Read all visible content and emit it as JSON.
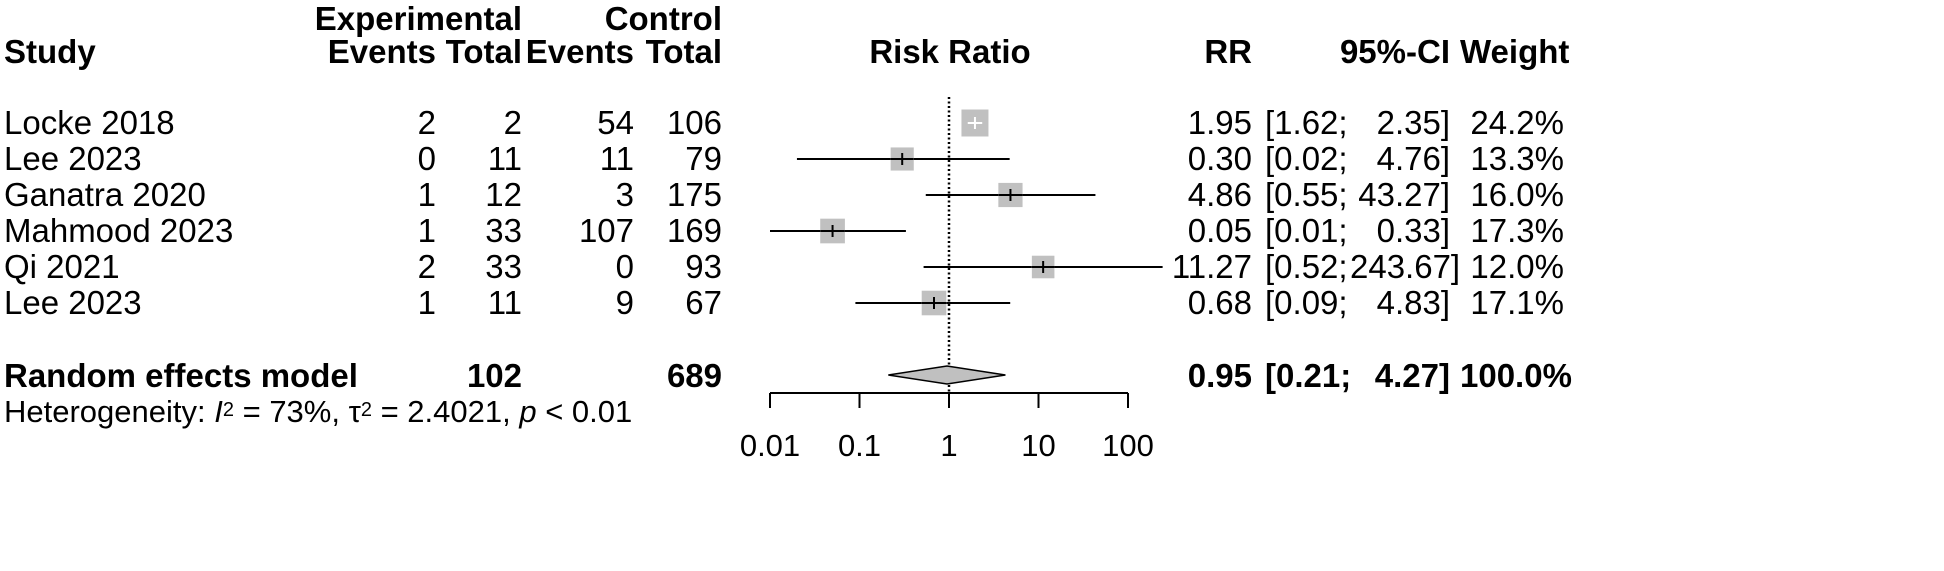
{
  "headers": {
    "study": "Study",
    "experimental": "Experimental",
    "control": "Control",
    "events_exp": "Events",
    "total_exp": "Total",
    "events_ctrl": "Events",
    "total_ctrl": "Total",
    "risk_ratio": "Risk Ratio",
    "rr": "RR",
    "ci": "95%-CI",
    "weight": "Weight"
  },
  "studies": [
    {
      "name": "Locke 2018",
      "e_events": "2",
      "e_total": "2",
      "c_events": "54",
      "c_total": "106",
      "rr": "1.95",
      "ci_low": "[1.62;",
      "ci_high": "2.35]",
      "weight": "24.2%"
    },
    {
      "name": "Lee 2023",
      "e_events": "0",
      "e_total": "11",
      "c_events": "11",
      "c_total": "79",
      "rr": "0.30",
      "ci_low": "[0.02;",
      "ci_high": "4.76]",
      "weight": "13.3%"
    },
    {
      "name": "Ganatra 2020",
      "e_events": "1",
      "e_total": "12",
      "c_events": "3",
      "c_total": "175",
      "rr": "4.86",
      "ci_low": "[0.55;",
      "ci_high": "43.27]",
      "weight": "16.0%"
    },
    {
      "name": "Mahmood 2023",
      "e_events": "1",
      "e_total": "33",
      "c_events": "107",
      "c_total": "169",
      "rr": "0.05",
      "ci_low": "[0.01;",
      "ci_high": "0.33]",
      "weight": "17.3%"
    },
    {
      "name": "Qi 2021",
      "e_events": "2",
      "e_total": "33",
      "c_events": "0",
      "c_total": "93",
      "rr": "11.27",
      "ci_low": "[0.52;",
      "ci_high": "243.67]",
      "weight": "12.0%"
    },
    {
      "name": "Lee 2023",
      "e_events": "1",
      "e_total": "11",
      "c_events": "9",
      "c_total": "67",
      "rr": "0.68",
      "ci_low": "[0.09;",
      "ci_high": "4.83]",
      "weight": "17.1%"
    }
  ],
  "summary": {
    "label": "Random effects model",
    "e_total": "102",
    "c_total": "689",
    "rr": "0.95",
    "ci_low": "[0.21;",
    "ci_high": "4.27]",
    "weight": "100.0%"
  },
  "heterogeneity": {
    "prefix": "Heterogeneity: ",
    "i_symbol": "I",
    "i_sup": "2",
    "i_value": " = 73%, ",
    "tau_symbol": "τ",
    "tau_sup": "2",
    "tau_value": " = 2.4021, ",
    "p_symbol": "p",
    "p_value": " < 0.01"
  },
  "chart_data": {
    "type": "forest",
    "title": "Risk Ratio",
    "scale": "log",
    "xlim": [
      0.01,
      100
    ],
    "tick_labels": [
      "0.01",
      "0.1",
      "1",
      "10",
      "100"
    ],
    "reference_line": 1,
    "studies": [
      {
        "name": "Locke 2018",
        "rr": 1.95,
        "lower": 1.62,
        "upper": 2.35,
        "weight": 24.2
      },
      {
        "name": "Lee 2023",
        "rr": 0.3,
        "lower": 0.02,
        "upper": 4.76,
        "weight": 13.3
      },
      {
        "name": "Ganatra 2020",
        "rr": 4.86,
        "lower": 0.55,
        "upper": 43.27,
        "weight": 16.0
      },
      {
        "name": "Mahmood 2023",
        "rr": 0.05,
        "lower": 0.01,
        "upper": 0.33,
        "weight": 17.3
      },
      {
        "name": "Qi 2021",
        "rr": 11.27,
        "lower": 0.52,
        "upper": 243.67,
        "weight": 12.0
      },
      {
        "name": "Lee 2023",
        "rr": 0.68,
        "lower": 0.09,
        "upper": 4.83,
        "weight": 17.1
      }
    ],
    "summary": {
      "name": "Random effects model",
      "rr": 0.95,
      "lower": 0.21,
      "upper": 4.27
    },
    "colors": {
      "box": "#c0c0c0",
      "line": "#000000",
      "diamond": "#c0c0c0",
      "box_ci_inside": "#ffffff"
    }
  }
}
